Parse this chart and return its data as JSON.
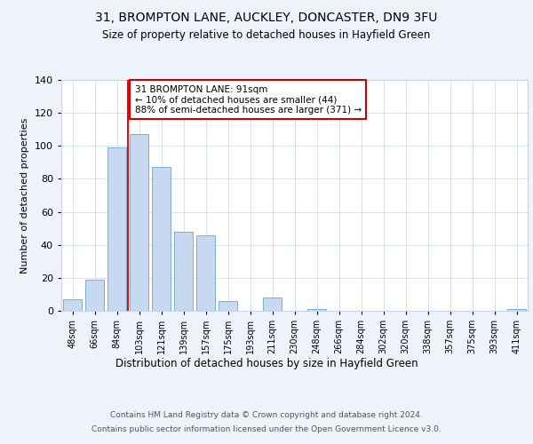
{
  "title1": "31, BROMPTON LANE, AUCKLEY, DONCASTER, DN9 3FU",
  "title2": "Size of property relative to detached houses in Hayfield Green",
  "xlabel": "Distribution of detached houses by size in Hayfield Green",
  "ylabel": "Number of detached properties",
  "bar_labels": [
    "48sqm",
    "66sqm",
    "84sqm",
    "103sqm",
    "121sqm",
    "139sqm",
    "157sqm",
    "175sqm",
    "193sqm",
    "211sqm",
    "230sqm",
    "248sqm",
    "266sqm",
    "284sqm",
    "302sqm",
    "320sqm",
    "338sqm",
    "357sqm",
    "375sqm",
    "393sqm",
    "411sqm"
  ],
  "bar_values": [
    7,
    19,
    99,
    107,
    87,
    48,
    46,
    6,
    0,
    8,
    0,
    1,
    0,
    0,
    0,
    0,
    0,
    0,
    0,
    0,
    1
  ],
  "bar_color": "#c6d9f1",
  "bar_edgecolor": "#7bafd4",
  "ylim": [
    0,
    140
  ],
  "yticks": [
    0,
    20,
    40,
    60,
    80,
    100,
    120,
    140
  ],
  "annotation_title": "31 BROMPTON LANE: 91sqm",
  "annotation_line1": "← 10% of detached houses are smaller (44)",
  "annotation_line2": "88% of semi-detached houses are larger (371) →",
  "box_edgecolor": "#cc0000",
  "footer1": "Contains HM Land Registry data © Crown copyright and database right 2024.",
  "footer2": "Contains public sector information licensed under the Open Government Licence v3.0.",
  "background_color": "#eef2fa",
  "plot_bg": "#ffffff"
}
